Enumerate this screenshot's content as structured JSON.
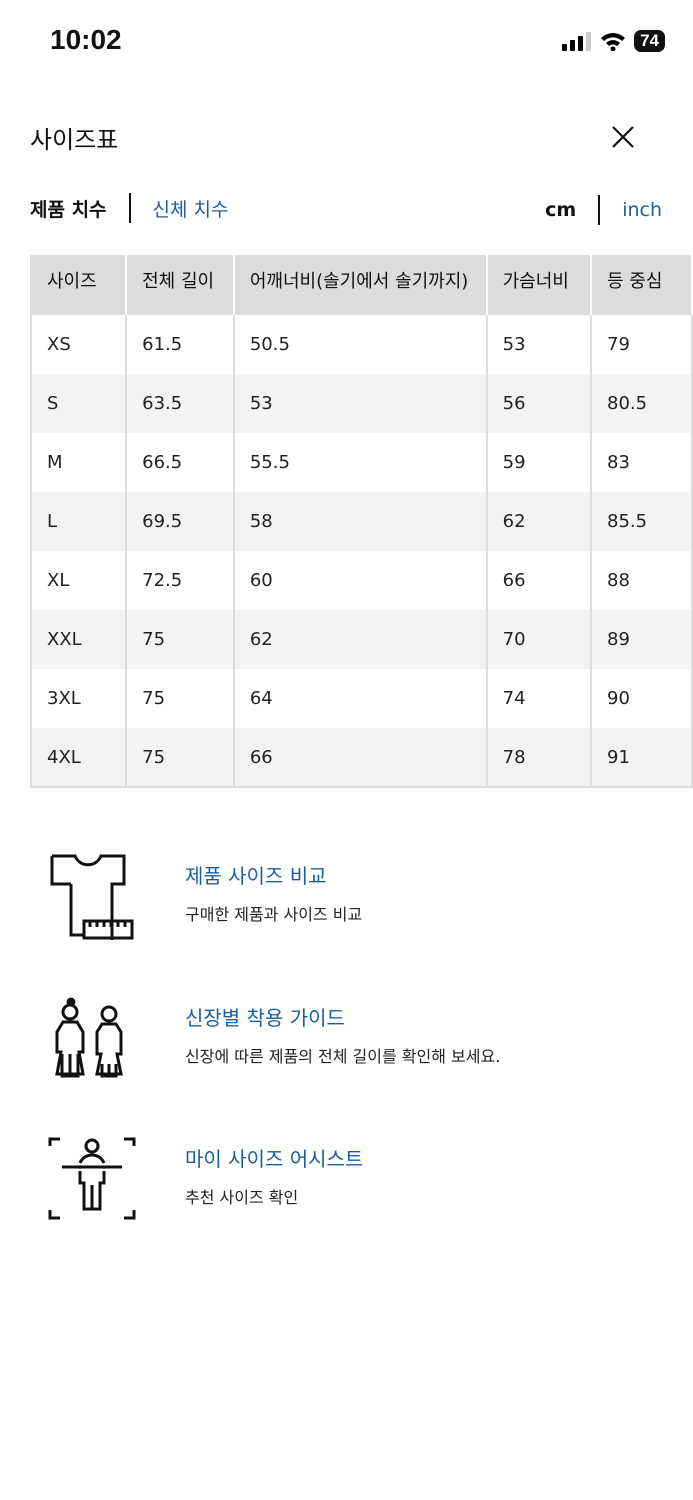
{
  "status_bar": {
    "time": "10:02",
    "battery": "74"
  },
  "header": {
    "title": "사이즈표",
    "close_icon": "close-icon"
  },
  "tabs": [
    {
      "label": "제품 치수",
      "active": true
    },
    {
      "label": "신체 치수",
      "active": false
    }
  ],
  "units": [
    {
      "label": "cm",
      "active": true
    },
    {
      "label": "inch",
      "active": false
    }
  ],
  "table": {
    "columns": [
      "사이즈",
      "전체 길이",
      "어깨너비(솔기에서 솔기까지)",
      "가슴너비",
      "등 중심"
    ],
    "rows": [
      [
        "XS",
        "61.5",
        "50.5",
        "53",
        "79"
      ],
      [
        "S",
        "63.5",
        "53",
        "56",
        "80.5"
      ],
      [
        "M",
        "66.5",
        "55.5",
        "59",
        "83"
      ],
      [
        "L",
        "69.5",
        "58",
        "62",
        "85.5"
      ],
      [
        "XL",
        "72.5",
        "60",
        "66",
        "88"
      ],
      [
        "XXL",
        "75",
        "62",
        "70",
        "89"
      ],
      [
        "3XL",
        "75",
        "64",
        "74",
        "90"
      ],
      [
        "4XL",
        "75",
        "66",
        "78",
        "91"
      ]
    ]
  },
  "features": [
    {
      "title": "제품 사이즈 비교",
      "desc": "구매한 제품과 사이즈 비교",
      "icon": "shirt-ruler-icon"
    },
    {
      "title": "신장별 착용 가이드",
      "desc": "신장에 따른 제품의 전체 길이를 확인해 보세요.",
      "icon": "two-people-icon"
    },
    {
      "title": "마이 사이즈 어시스트",
      "desc": "추천 사이즈 확인",
      "icon": "body-scan-icon"
    }
  ],
  "colors": {
    "link": "#1b5e9e",
    "header_bg": "#dcdcdc",
    "stripe": "#f3f3f3"
  }
}
